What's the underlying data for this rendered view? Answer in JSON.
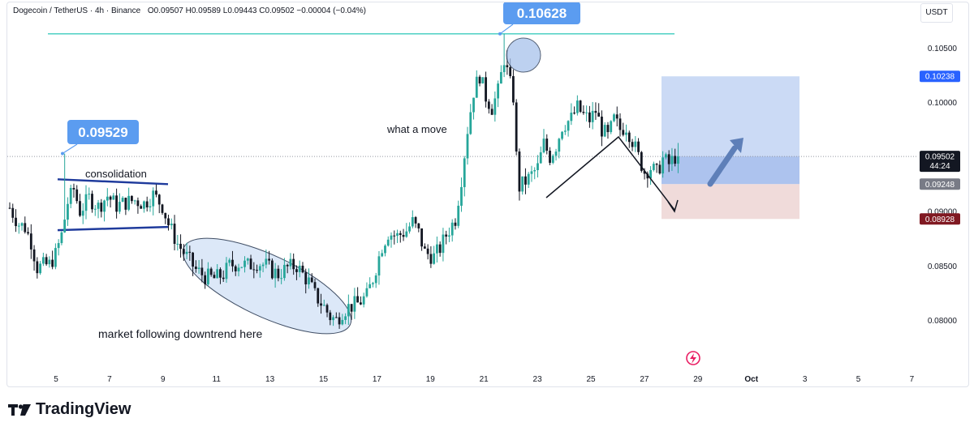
{
  "header": {
    "symbol": "Dogecoin / TetherUS · 4h · Binance",
    "ohlc": "O0.09507  H0.09589  L0.09443  C0.09502  −0.00004 (−0.04%)"
  },
  "currency": "USDT",
  "brand": "TradingView",
  "colors": {
    "up": "#26a69a",
    "down": "#131722",
    "resistance_line": "#4dd0c4",
    "callout": "#5b9cf0",
    "target_zone": "#b9cdf2",
    "stop_zone": "#eed7d6",
    "channel": "#1f3b9c",
    "ellipse_fill": "#d7e5f7"
  },
  "chart_data": {
    "type": "candlestick",
    "y_axis": {
      "ticks": [
        "0.10500",
        "0.10000",
        "0.09000",
        "0.08500",
        "0.08000"
      ],
      "min": 0.0768,
      "max": 0.1083
    },
    "x_axis": {
      "ticks": [
        "5",
        "7",
        "9",
        "11",
        "13",
        "15",
        "17",
        "19",
        "21",
        "23",
        "25",
        "27",
        "29",
        "Oct",
        "3",
        "5",
        "7"
      ]
    },
    "price_labels": [
      {
        "value": "0.10238",
        "price": 0.10238,
        "color": "#2962ff",
        "text_color": "#ffffff"
      },
      {
        "value": "0.09502",
        "extra": "44:24",
        "price": 0.09502,
        "color": "#131722",
        "text_color": "#ffffff"
      },
      {
        "value": "0.09248",
        "price": 0.09248,
        "color": "#787b86",
        "text_color": "#ffffff"
      },
      {
        "value": "0.08928",
        "price": 0.08928,
        "color": "#801922",
        "text_color": "#ffffff"
      }
    ],
    "callouts": [
      {
        "value": "0.09529",
        "price": 0.09529
      },
      {
        "value": "0.10628",
        "price": 0.10628
      }
    ],
    "annotations": {
      "consolidation": "consolidation",
      "what_a_move": "what a move",
      "downtrend": "market following downtrend here"
    },
    "levels": {
      "resistance": 0.10628,
      "current": 0.09502,
      "target": 0.10238,
      "entry": 0.09248,
      "stop": 0.08928,
      "consolidation_top": 0.0927,
      "consolidation_bottom": 0.0884
    },
    "close_path": [
      [
        0,
        0.0903
      ],
      [
        3,
        0.0888
      ],
      [
        5,
        0.0885
      ],
      [
        7,
        0.0872
      ],
      [
        9,
        0.0848
      ],
      [
        11,
        0.085
      ],
      [
        13,
        0.0851
      ],
      [
        15,
        0.086
      ],
      [
        17,
        0.0878
      ],
      [
        19,
        0.0908
      ],
      [
        21,
        0.092
      ],
      [
        23,
        0.09
      ],
      [
        26,
        0.0912
      ],
      [
        29,
        0.0904
      ],
      [
        32,
        0.0914
      ],
      [
        35,
        0.0905
      ],
      [
        38,
        0.0908
      ],
      [
        41,
        0.091
      ],
      [
        44,
        0.0907
      ],
      [
        47,
        0.0915
      ],
      [
        50,
        0.0905
      ],
      [
        52,
        0.0888
      ],
      [
        55,
        0.087
      ],
      [
        58,
        0.0858
      ],
      [
        61,
        0.0846
      ],
      [
        64,
        0.084
      ],
      [
        67,
        0.0838
      ],
      [
        70,
        0.0842
      ],
      [
        72,
        0.085
      ],
      [
        75,
        0.0852
      ],
      [
        78,
        0.085
      ],
      [
        81,
        0.0853
      ],
      [
        84,
        0.085
      ],
      [
        86,
        0.0845
      ],
      [
        88,
        0.0842
      ],
      [
        91,
        0.0848
      ],
      [
        94,
        0.085
      ],
      [
        96,
        0.0842
      ],
      [
        98,
        0.0835
      ],
      [
        100,
        0.0823
      ],
      [
        103,
        0.0812
      ],
      [
        105,
        0.0803
      ],
      [
        107,
        0.08
      ],
      [
        109,
        0.0808
      ],
      [
        111,
        0.0812
      ],
      [
        114,
        0.0815
      ],
      [
        117,
        0.0822
      ],
      [
        119,
        0.0838
      ],
      [
        122,
        0.0868
      ],
      [
        124,
        0.088
      ],
      [
        127,
        0.0877
      ],
      [
        130,
        0.0882
      ],
      [
        132,
        0.089
      ],
      [
        134,
        0.088
      ],
      [
        136,
        0.0862
      ],
      [
        139,
        0.0858
      ],
      [
        141,
        0.0866
      ],
      [
        143,
        0.0878
      ],
      [
        146,
        0.0893
      ],
      [
        148,
        0.093
      ],
      [
        150,
        0.0975
      ],
      [
        152,
        0.101
      ],
      [
        154,
        0.1025
      ],
      [
        156,
        0.1005
      ],
      [
        158,
        0.0995
      ],
      [
        160,
        0.101
      ],
      [
        162,
        0.104
      ],
      [
        163,
        0.1028
      ],
      [
        165,
        0.1005
      ],
      [
        166,
        0.095
      ],
      [
        167,
        0.0922
      ],
      [
        170,
        0.093
      ],
      [
        173,
        0.094
      ],
      [
        175,
        0.0962
      ],
      [
        177,
        0.095
      ],
      [
        179,
        0.096
      ],
      [
        181,
        0.0978
      ],
      [
        184,
        0.0985
      ],
      [
        186,
        0.0995
      ],
      [
        188,
        0.0988
      ],
      [
        190,
        0.0984
      ],
      [
        192,
        0.0992
      ],
      [
        194,
        0.0975
      ],
      [
        196,
        0.0968
      ],
      [
        198,
        0.0984
      ],
      [
        200,
        0.0975
      ],
      [
        202,
        0.0978
      ],
      [
        204,
        0.0965
      ],
      [
        206,
        0.095
      ],
      [
        208,
        0.0936
      ],
      [
        210,
        0.094
      ],
      [
        212,
        0.0935
      ],
      [
        214,
        0.0948
      ],
      [
        216,
        0.0943
      ],
      [
        218,
        0.095
      ],
      [
        219,
        0.095
      ]
    ]
  }
}
